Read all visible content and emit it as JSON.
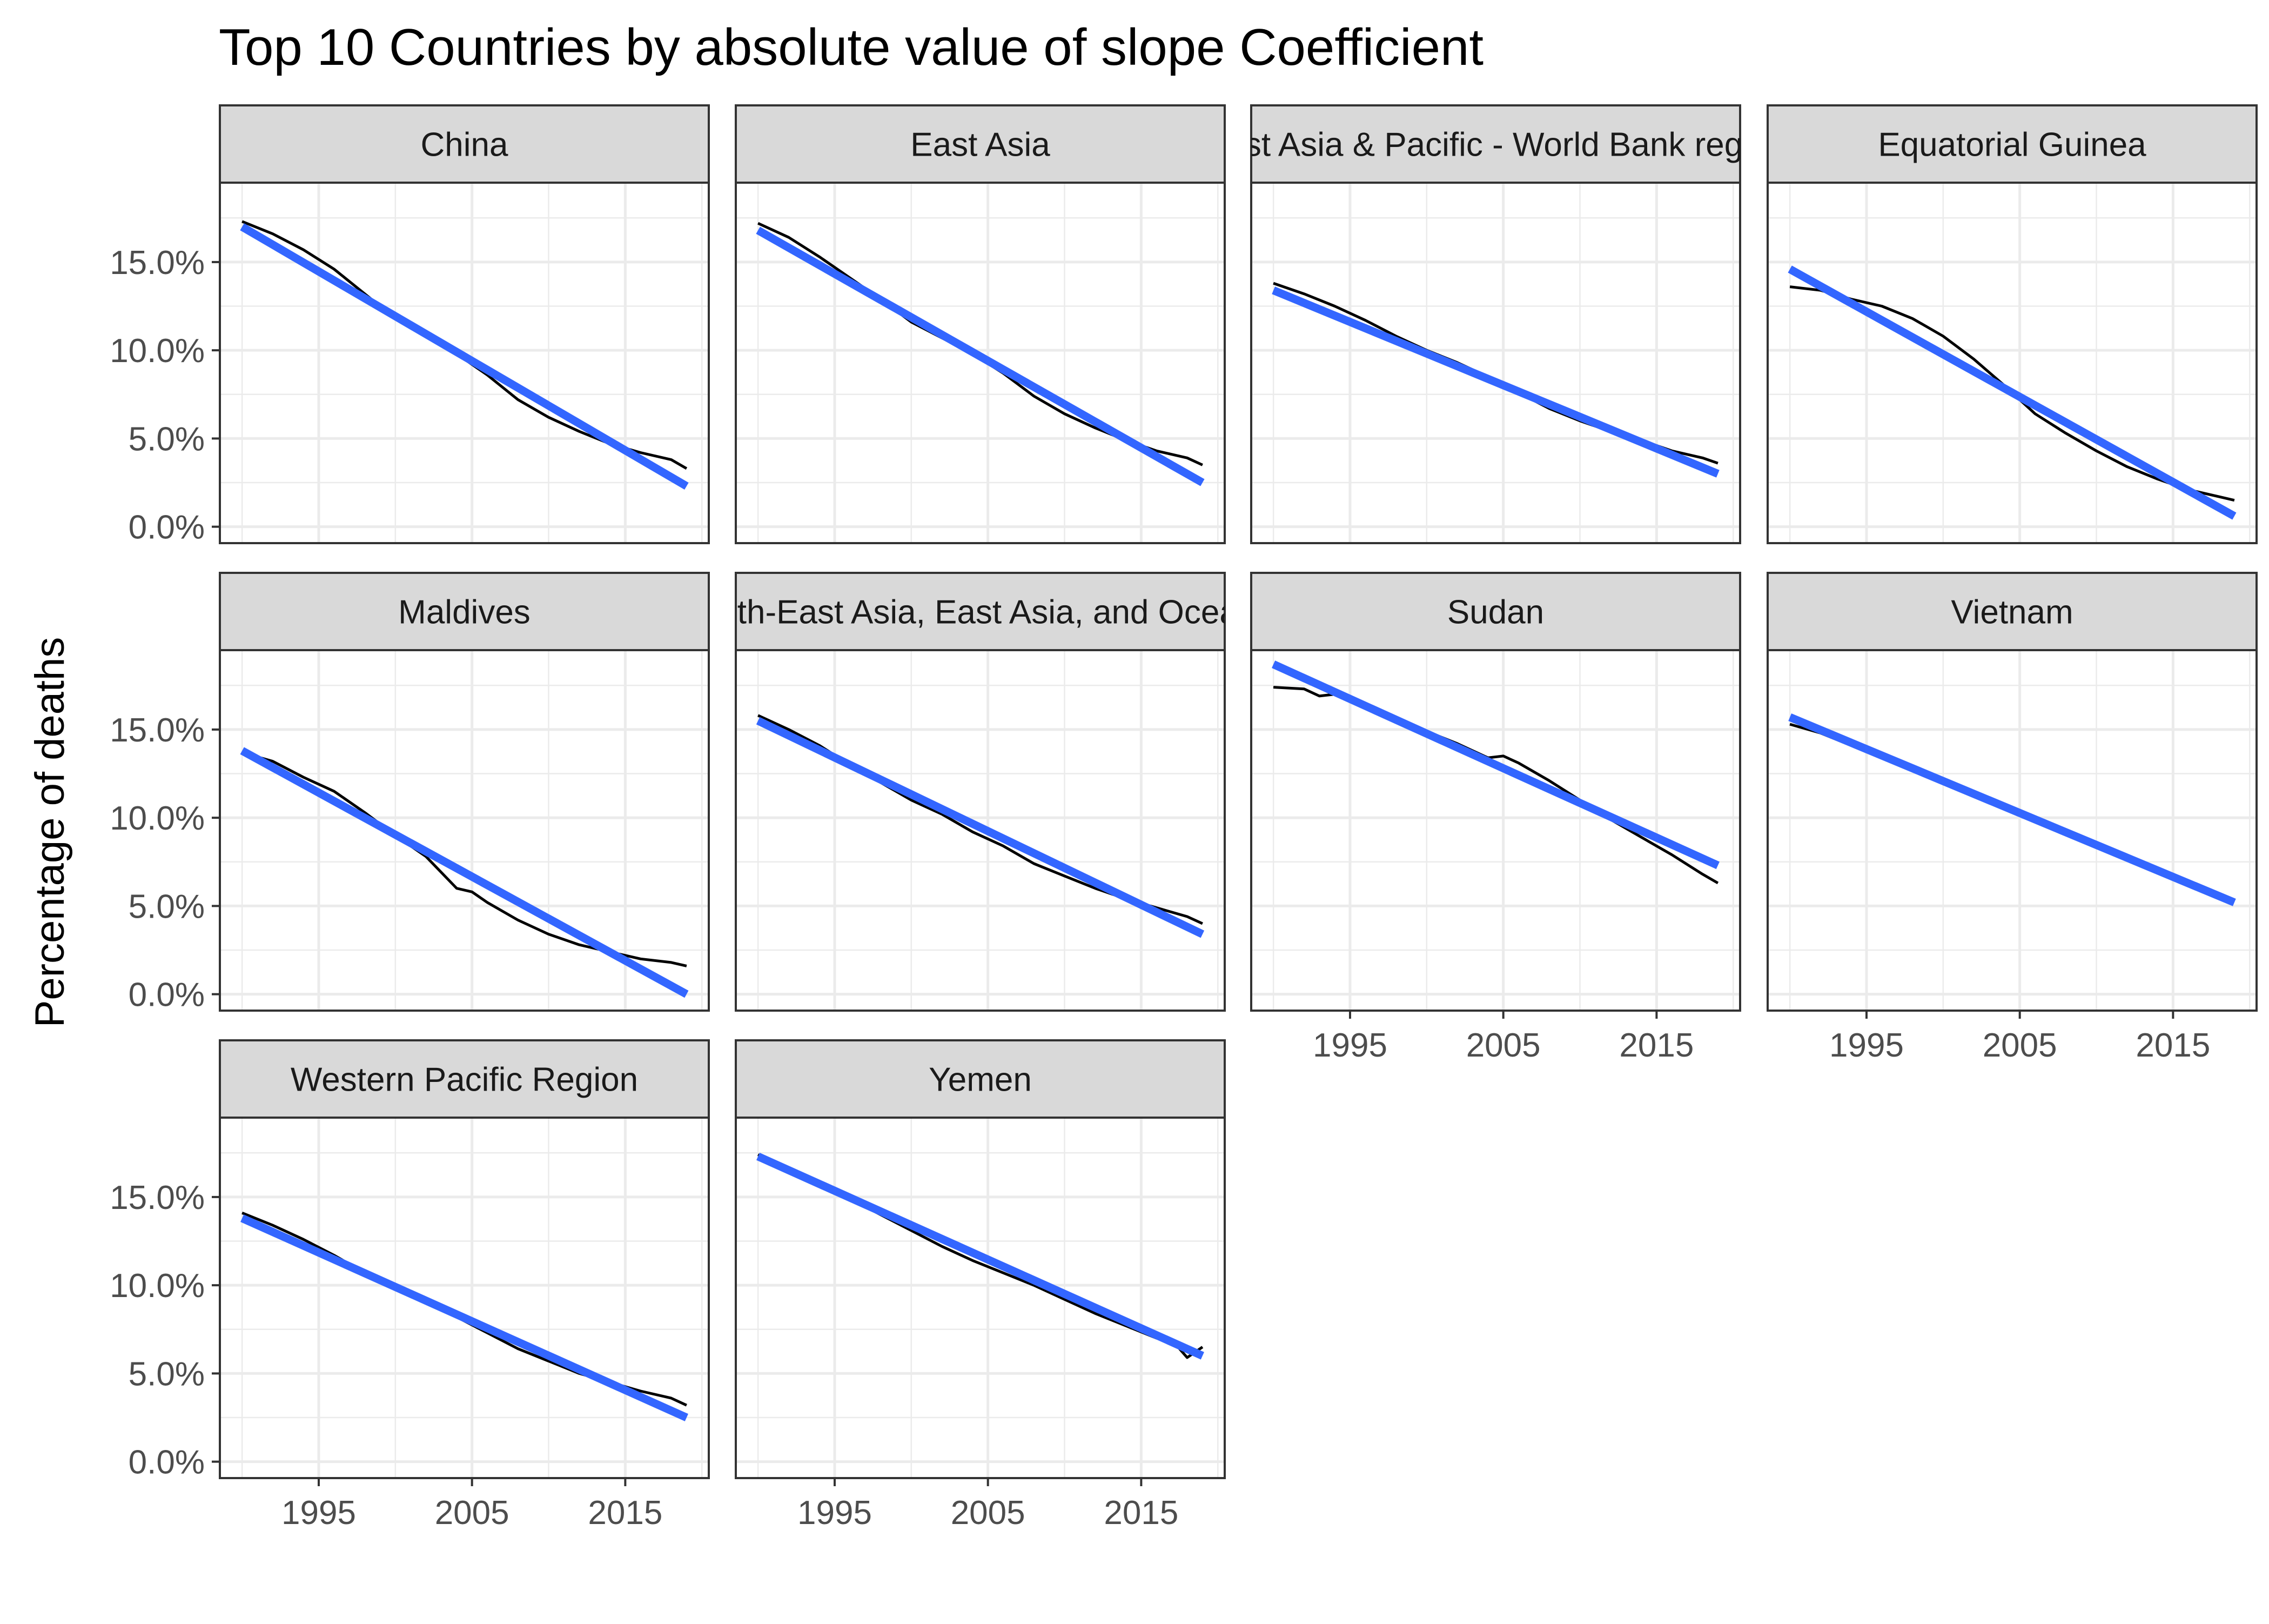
{
  "chart_data": {
    "type": "line",
    "title": "Top 10 Countries by absolute value of slope Coefficient",
    "ylabel": "Percentage of deaths",
    "xlabel": "",
    "x_ticks": [
      1995,
      2005,
      2015
    ],
    "x_ticks_labels": [
      "1995",
      "2005",
      "2015"
    ],
    "y_ticks": [
      0,
      5,
      10,
      15
    ],
    "y_ticks_labels": [
      "0.0%",
      "5.0%",
      "10.0%",
      "15.0%"
    ],
    "xlim": [
      1988.55,
      2020.45
    ],
    "ylim": [
      -0.93,
      19.5
    ],
    "grid": true,
    "legend": "none",
    "colors": {
      "observed": "#000000",
      "trend": "#3366FF",
      "strip_fill": "#d9d9d9",
      "grid": "#ebebeb",
      "border": "#333333"
    },
    "panels": [
      {
        "label": "China",
        "x": [
          1990,
          1992,
          1994,
          1996,
          1998,
          2000,
          2002,
          2004,
          2006,
          2008,
          2010,
          2012,
          2014,
          2016,
          2018,
          2019
        ],
        "values": [
          17.3,
          16.6,
          15.7,
          14.6,
          13.2,
          11.8,
          10.8,
          9.8,
          8.6,
          7.2,
          6.2,
          5.4,
          4.7,
          4.2,
          3.8,
          3.3
        ],
        "trend": [
          17.0,
          2.3
        ]
      },
      {
        "label": "East Asia",
        "x": [
          1990,
          1992,
          1994,
          1996,
          1998,
          2000,
          2002,
          2004,
          2006,
          2008,
          2010,
          2012,
          2014,
          2016,
          2018,
          2019
        ],
        "values": [
          17.2,
          16.4,
          15.3,
          14.1,
          12.9,
          11.6,
          10.7,
          9.8,
          8.7,
          7.4,
          6.4,
          5.6,
          4.9,
          4.3,
          3.9,
          3.5
        ],
        "trend": [
          16.8,
          2.5
        ]
      },
      {
        "label": "East Asia & Pacific - World Bank region",
        "x": [
          1990,
          1992,
          1994,
          1996,
          1998,
          2000,
          2002,
          2004,
          2006,
          2008,
          2010,
          2012,
          2014,
          2016,
          2018,
          2019
        ],
        "values": [
          13.8,
          13.2,
          12.5,
          11.7,
          10.8,
          10.0,
          9.3,
          8.5,
          7.6,
          6.7,
          6.0,
          5.4,
          4.9,
          4.3,
          3.9,
          3.6
        ],
        "trend": [
          13.4,
          3.0
        ]
      },
      {
        "label": "Equatorial Guinea",
        "x": [
          1990,
          1992,
          1994,
          1996,
          1998,
          2000,
          2002,
          2004,
          2006,
          2008,
          2010,
          2012,
          2014,
          2016,
          2018,
          2019
        ],
        "values": [
          13.6,
          13.4,
          12.9,
          12.5,
          11.8,
          10.8,
          9.5,
          8.0,
          6.4,
          5.3,
          4.3,
          3.4,
          2.7,
          2.1,
          1.7,
          1.5
        ],
        "trend": [
          14.6,
          0.6
        ]
      },
      {
        "label": "Maldives",
        "x": [
          1990,
          1992,
          1994,
          1996,
          1998,
          2000,
          2002,
          2004,
          2005,
          2006,
          2008,
          2010,
          2012,
          2014,
          2016,
          2018,
          2019
        ],
        "values": [
          13.7,
          13.2,
          12.3,
          11.5,
          10.3,
          9.0,
          7.8,
          6.0,
          5.8,
          5.2,
          4.2,
          3.4,
          2.8,
          2.4,
          2.0,
          1.8,
          1.6
        ],
        "trend": [
          13.8,
          0.0
        ]
      },
      {
        "label": "South-East Asia, East Asia, and Oceania",
        "x": [
          1990,
          1992,
          1994,
          1996,
          1998,
          2000,
          2002,
          2004,
          2006,
          2008,
          2010,
          2012,
          2014,
          2016,
          2018,
          2019
        ],
        "values": [
          15.8,
          15.0,
          14.1,
          13.0,
          12.0,
          11.0,
          10.2,
          9.2,
          8.4,
          7.4,
          6.7,
          6.0,
          5.4,
          4.9,
          4.4,
          4.0
        ],
        "trend": [
          15.5,
          3.4
        ]
      },
      {
        "label": "Sudan",
        "x": [
          1990,
          1992,
          1993,
          1994,
          1996,
          1998,
          2000,
          2002,
          2004,
          2005,
          2006,
          2008,
          2010,
          2012,
          2014,
          2016,
          2018,
          2019
        ],
        "values": [
          17.4,
          17.3,
          16.9,
          17.0,
          16.4,
          15.6,
          14.9,
          14.2,
          13.4,
          13.5,
          13.1,
          12.1,
          11.0,
          9.9,
          8.9,
          7.9,
          6.8,
          6.3
        ],
        "trend": [
          18.7,
          7.3
        ]
      },
      {
        "label": "Vietnam",
        "x": [
          1990,
          1992,
          1994,
          1996,
          1998,
          2000,
          2002,
          2004,
          2006,
          2008,
          2010,
          2012,
          2014,
          2016,
          2018,
          2019
        ],
        "values": [
          15.3,
          14.8,
          14.1,
          13.4,
          12.7,
          12.0,
          11.3,
          10.6,
          9.9,
          9.2,
          8.4,
          7.7,
          7.0,
          6.3,
          5.6,
          5.3
        ],
        "trend": [
          15.7,
          5.2
        ]
      },
      {
        "label": "Western Pacific Region",
        "x": [
          1990,
          1992,
          1994,
          1996,
          1998,
          2000,
          2002,
          2004,
          2006,
          2008,
          2010,
          2012,
          2014,
          2016,
          2018,
          2019
        ],
        "values": [
          14.1,
          13.4,
          12.6,
          11.7,
          10.7,
          9.8,
          9.0,
          8.2,
          7.3,
          6.4,
          5.7,
          5.0,
          4.5,
          4.0,
          3.6,
          3.2
        ],
        "trend": [
          13.8,
          2.5
        ]
      },
      {
        "label": "Yemen",
        "x": [
          1990,
          1992,
          1994,
          1996,
          1998,
          2000,
          2002,
          2004,
          2006,
          2008,
          2010,
          2012,
          2014,
          2016,
          2017,
          2018,
          2019
        ],
        "values": [
          17.4,
          16.6,
          15.8,
          14.9,
          14.0,
          13.1,
          12.2,
          11.4,
          10.7,
          10.0,
          9.2,
          8.4,
          7.7,
          7.0,
          6.9,
          5.9,
          6.5
        ],
        "trend": [
          17.3,
          6.0
        ]
      }
    ]
  }
}
